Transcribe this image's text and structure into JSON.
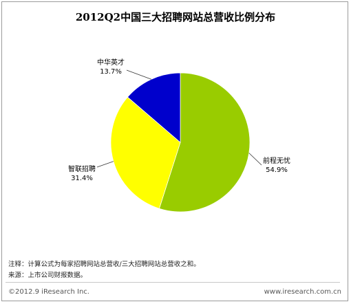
{
  "chart_data": {
    "type": "pie",
    "title": "2012Q2中国三大招聘网站总营收比例分布",
    "slices": [
      {
        "label": "前程无忧",
        "value": 54.9,
        "value_label": "54.9%",
        "color": "#99cc00"
      },
      {
        "label": "智联招聘",
        "value": 31.4,
        "value_label": "31.4%",
        "color": "#ffff00"
      },
      {
        "label": "中华英才",
        "value": 13.7,
        "value_label": "13.7%",
        "color": "#0000cc"
      }
    ],
    "start": "12 o'clock",
    "direction": "clockwise",
    "legend": "none"
  },
  "notes": {
    "formula": "注释：计算公式为每家招聘网站总营收/三大招聘网站总营收之和。",
    "source": "来源：上市公司财报数据。"
  },
  "footer": {
    "copyright": "©2012.9 iResearch Inc.",
    "website": "www.iresearch.com.cn"
  }
}
